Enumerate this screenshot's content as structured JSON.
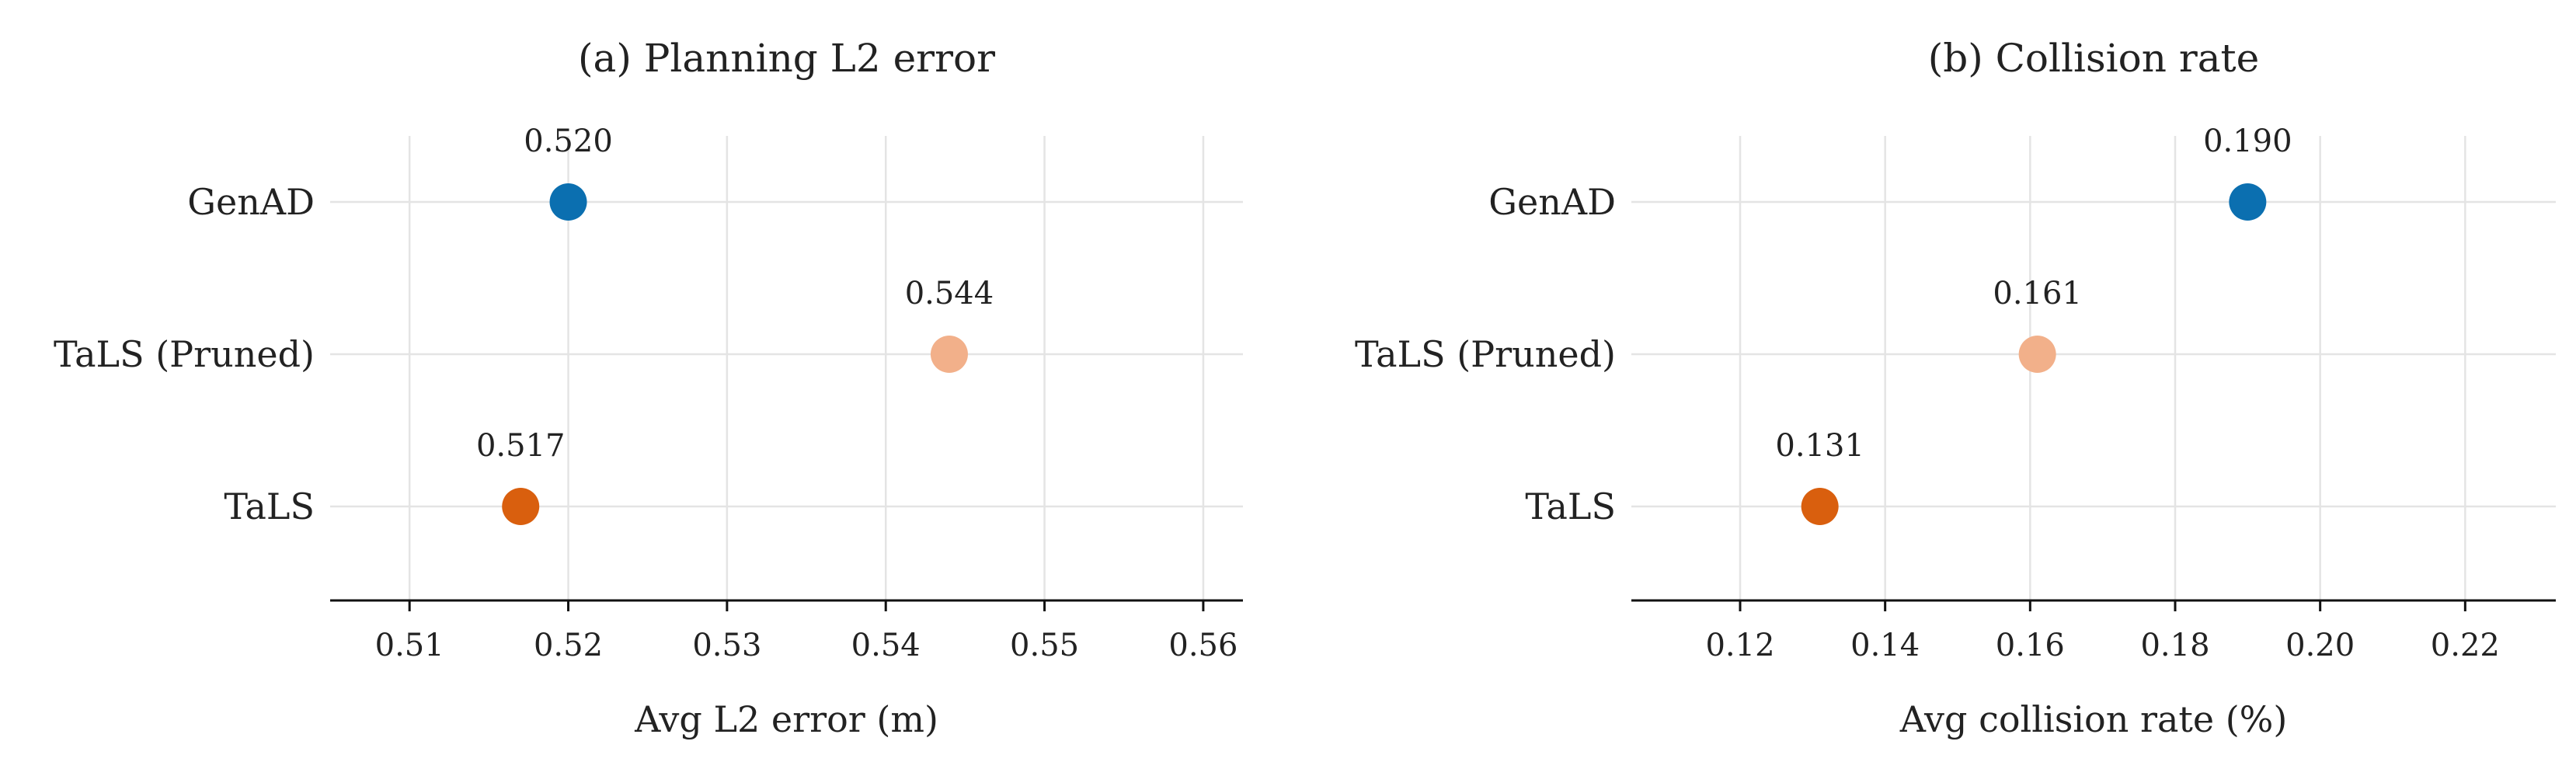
{
  "chart_data": [
    {
      "type": "scatter",
      "title": "(a) Planning L2 error",
      "xlabel": "Avg L2 error (m)",
      "ylabel": "",
      "categories": [
        "GenAD",
        "TaLS (Pruned)",
        "TaLS"
      ],
      "values": [
        0.52,
        0.544,
        0.517
      ],
      "value_labels": [
        "0.520",
        "0.544",
        "0.517"
      ],
      "colors": [
        "#0b6fb0",
        "#f2b08a",
        "#d95f0e"
      ],
      "xlim": [
        0.505,
        0.5625
      ],
      "xticks": [
        0.51,
        0.52,
        0.53,
        0.54,
        0.55,
        0.56
      ],
      "xtick_labels": [
        "0.51",
        "0.52",
        "0.53",
        "0.54",
        "0.55",
        "0.56"
      ],
      "grid": true
    },
    {
      "type": "scatter",
      "title": "(b) Collision rate",
      "xlabel": "Avg collision rate (%)",
      "ylabel": "",
      "categories": [
        "GenAD",
        "TaLS (Pruned)",
        "TaLS"
      ],
      "values": [
        0.19,
        0.161,
        0.131
      ],
      "value_labels": [
        "0.190",
        "0.161",
        "0.131"
      ],
      "colors": [
        "#0b6fb0",
        "#f2b08a",
        "#d95f0e"
      ],
      "xlim": [
        0.105,
        0.2325
      ],
      "xticks": [
        0.12,
        0.14,
        0.16,
        0.18,
        0.2,
        0.22
      ],
      "xtick_labels": [
        "0.12",
        "0.14",
        "0.16",
        "0.18",
        "0.20",
        "0.22"
      ],
      "grid": true
    }
  ]
}
